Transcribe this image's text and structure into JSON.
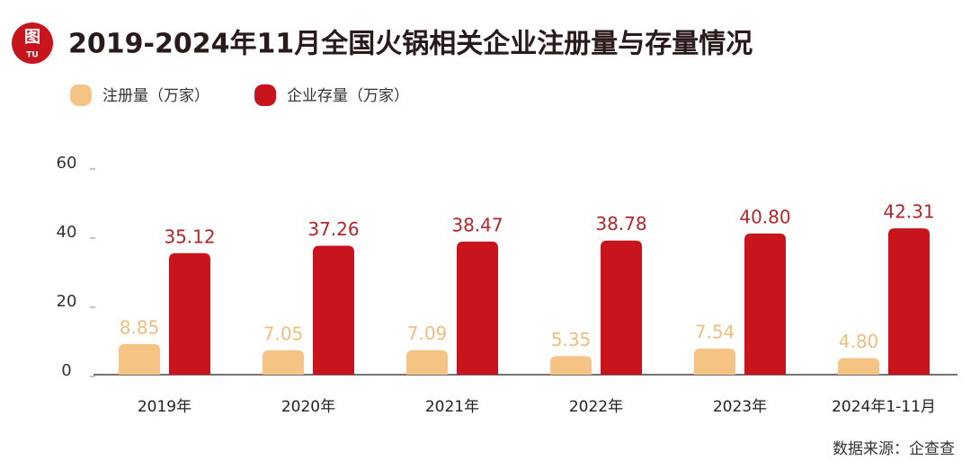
{
  "logo": {
    "top": "图",
    "bottom": "TU"
  },
  "source": "数据来源：企查查",
  "chart_data": {
    "type": "bar",
    "title": "2019-2024年11月全国火锅相关企业注册量与存量情况",
    "categories": [
      "2019年",
      "2020年",
      "2021年",
      "2022年",
      "2023年",
      "2024年1-11月"
    ],
    "series": [
      {
        "name": "注册量（万家）",
        "color": "#f5c384",
        "label_color": "#f0be80",
        "values": [
          8.85,
          7.05,
          7.09,
          5.35,
          7.54,
          4.8
        ],
        "value_labels": [
          "8.85",
          "7.05",
          "7.09",
          "5.35",
          "7.54",
          "4.80"
        ]
      },
      {
        "name": "企业存量（万家）",
        "color": "#c8141c",
        "label_color": "#b3262b",
        "values": [
          35.12,
          37.26,
          38.47,
          38.78,
          40.8,
          42.31
        ],
        "value_labels": [
          "35.12",
          "37.26",
          "38.47",
          "38.78",
          "40.80",
          "42.31"
        ]
      }
    ],
    "ylim": [
      0,
      60
    ],
    "yticks": [
      0,
      20,
      40,
      60
    ],
    "grid": false
  }
}
